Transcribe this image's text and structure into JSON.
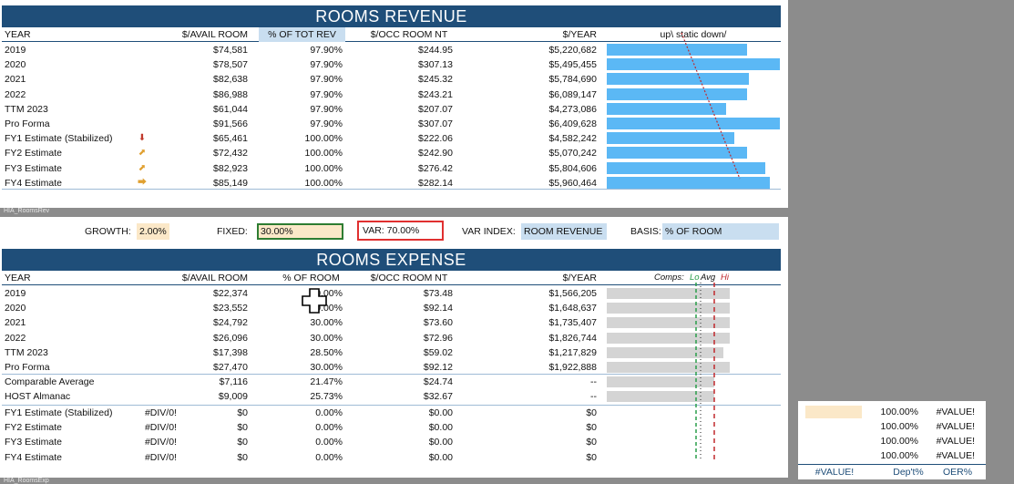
{
  "revenue": {
    "title": "ROOMS REVENUE",
    "headers": [
      "YEAR",
      "$/AVAIL ROOM",
      "% OF TOT REV",
      "$/OCC ROOM NT",
      "$/YEAR",
      "up\\ static down/"
    ],
    "rows": [
      {
        "year": "2019",
        "avail": "$74,581",
        "pct": "97.90%",
        "occ": "$244.95",
        "yr": "$5,220,682",
        "icon": "",
        "bar": 0.68
      },
      {
        "year": "2020",
        "avail": "$78,507",
        "pct": "97.90%",
        "occ": "$307.13",
        "yr": "$5,495,455",
        "icon": "",
        "bar": 0.84
      },
      {
        "year": "2021",
        "avail": "$82,638",
        "pct": "97.90%",
        "occ": "$245.32",
        "yr": "$5,784,690",
        "icon": "",
        "bar": 0.69
      },
      {
        "year": "2022",
        "avail": "$86,988",
        "pct": "97.90%",
        "occ": "$243.21",
        "yr": "$6,089,147",
        "icon": "",
        "bar": 0.68
      },
      {
        "year": "TTM 2023",
        "avail": "$61,044",
        "pct": "97.90%",
        "occ": "$207.07",
        "yr": "$4,273,086",
        "icon": "",
        "bar": 0.58
      },
      {
        "year": "Pro Forma",
        "avail": "$91,566",
        "pct": "97.90%",
        "occ": "$307.07",
        "yr": "$6,409,628",
        "icon": "",
        "bar": 0.84
      },
      {
        "year": "FY1 Estimate (Stabilized)",
        "avail": "$65,461",
        "pct": "100.00%",
        "occ": "$222.06",
        "yr": "$4,582,242",
        "icon": "down",
        "bar": 0.62
      },
      {
        "year": "FY2 Estimate",
        "avail": "$72,432",
        "pct": "100.00%",
        "occ": "$242.90",
        "yr": "$5,070,242",
        "icon": "up-right",
        "bar": 0.68
      },
      {
        "year": "FY3 Estimate",
        "avail": "$82,923",
        "pct": "100.00%",
        "occ": "$276.42",
        "yr": "$5,804,606",
        "icon": "up-right",
        "bar": 0.77
      },
      {
        "year": "FY4 Estimate",
        "avail": "$85,149",
        "pct": "100.00%",
        "occ": "$282.14",
        "yr": "$5,960,464",
        "icon": "right",
        "bar": 0.79
      }
    ],
    "sheet_tag": "HIA_RoomsRev"
  },
  "params": {
    "growth_label": "GROWTH:",
    "growth_value": "2.00%",
    "fixed_label": "FIXED:",
    "fixed_value": "30.00%",
    "var_label": "VAR: 70.00%",
    "var_index_label": "VAR INDEX:",
    "var_index_value": "ROOM REVENUE",
    "basis_label": "BASIS:",
    "basis_value": "% OF ROOM"
  },
  "expense": {
    "title": "ROOMS EXPENSE",
    "headers": [
      "YEAR",
      "$/AVAIL ROOM",
      "% OF ROOM",
      "$/OCC ROOM NT",
      "$/YEAR"
    ],
    "comps_label": "Comps:",
    "lo_label": "Lo",
    "avg_label": "Avg",
    "hi_label": "Hi",
    "rows": [
      {
        "year": "2019",
        "avail": "$22,374",
        "pct": "30.00%",
        "occ": "$73.48",
        "yr": "$1,566,205",
        "bar": 0.95
      },
      {
        "year": "2020",
        "avail": "$23,552",
        "pct": "30.00%",
        "occ": "$92.14",
        "yr": "$1,648,637",
        "bar": 0.95
      },
      {
        "year": "2021",
        "avail": "$24,792",
        "pct": "30.00%",
        "occ": "$73.60",
        "yr": "$1,735,407",
        "bar": 0.95
      },
      {
        "year": "2022",
        "avail": "$26,096",
        "pct": "30.00%",
        "occ": "$72.96",
        "yr": "$1,826,744",
        "bar": 0.95
      },
      {
        "year": "TTM 2023",
        "avail": "$17,398",
        "pct": "28.50%",
        "occ": "$59.02",
        "yr": "$1,217,829",
        "bar": 0.9
      },
      {
        "year": "Pro Forma",
        "avail": "$27,470",
        "pct": "30.00%",
        "occ": "$92.12",
        "yr": "$1,922,888",
        "bar": 0.95
      }
    ],
    "comparable_rows": [
      {
        "year": "Comparable Average",
        "avail": "$7,116",
        "pct": "21.47%",
        "occ": "$24.74",
        "yr": "--",
        "bar": 0.83
      },
      {
        "year": "HOST Almanac",
        "avail": "$9,009",
        "pct": "25.73%",
        "occ": "$32.67",
        "yr": "--",
        "bar": 0.83
      }
    ],
    "estimate_rows": [
      {
        "year": "FY1 Estimate (Stabilized)",
        "div": "#DIV/0!",
        "avail": "$0",
        "pct": "0.00%",
        "occ": "$0.00",
        "yr": "$0"
      },
      {
        "year": "FY2 Estimate",
        "div": "#DIV/0!",
        "avail": "$0",
        "pct": "0.00%",
        "occ": "$0.00",
        "yr": "$0"
      },
      {
        "year": "FY3 Estimate",
        "div": "#DIV/0!",
        "avail": "$0",
        "pct": "0.00%",
        "occ": "$0.00",
        "yr": "$0"
      },
      {
        "year": "FY4 Estimate",
        "div": "#DIV/0!",
        "avail": "$0",
        "pct": "0.00%",
        "occ": "$0.00",
        "yr": "$0"
      }
    ],
    "sheet_tag": "HIA_RoomsExp"
  },
  "side_panel": {
    "rows": [
      {
        "pct": "100.00%",
        "val": "#VALUE!"
      },
      {
        "pct": "100.00%",
        "val": "#VALUE!"
      },
      {
        "pct": "100.00%",
        "val": "#VALUE!"
      },
      {
        "pct": "100.00%",
        "val": "#VALUE!"
      }
    ],
    "footer": [
      "#VALUE!",
      "Dep't%",
      "OER%"
    ]
  },
  "colors": {
    "banner": "#1f4e79",
    "bar_blue": "#5bb8f5",
    "bar_grey": "#d4d4d4",
    "var_border": "#e03030",
    "fixed_border": "#2e7d32"
  }
}
